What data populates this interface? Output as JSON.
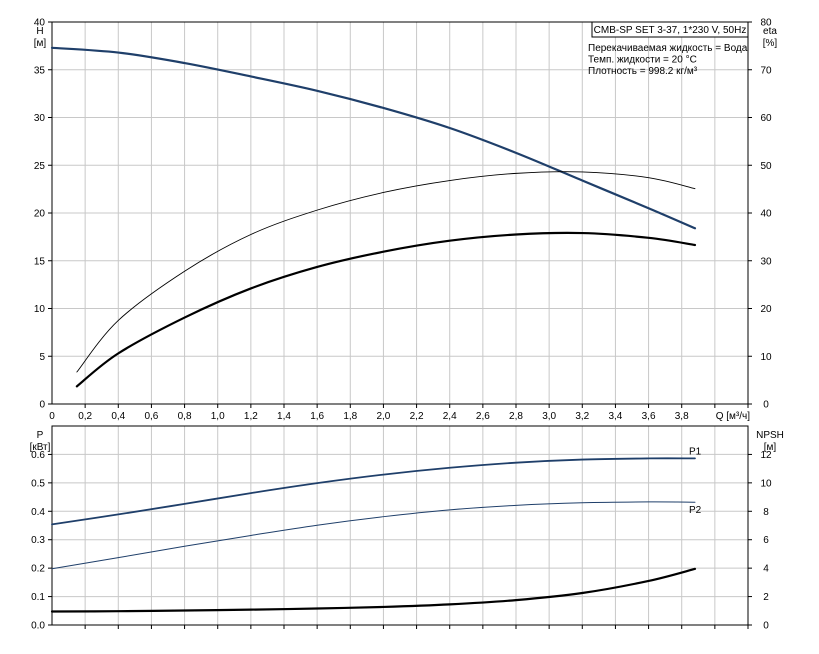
{
  "chart_data": [
    {
      "type": "line",
      "legend_box": {
        "title": "CMB-SP SET 3-37, 1*230 V, 50Hz",
        "lines": [
          "Перекачиваемая жидкость = Вода",
          "Темп. жидкости = 20 °C",
          "Плотность = 998.2 кг/м³"
        ]
      },
      "xlabel": "Q [м³/ч]",
      "xlim": [
        0,
        4.2
      ],
      "xticks": [
        "0",
        "0,2",
        "0,4",
        "0,6",
        "0,8",
        "1,0",
        "1,2",
        "1,4",
        "1,6",
        "1,8",
        "2,0",
        "2,2",
        "2,4",
        "2,6",
        "2,8",
        "3,0",
        "3,2",
        "3,4",
        "3,6",
        "3,8"
      ],
      "left_axis": {
        "label_top": "H",
        "label_unit": "[м]",
        "ylim": [
          0,
          40
        ],
        "ticks": [
          "0",
          "5",
          "10",
          "15",
          "20",
          "25",
          "30",
          "35",
          "40"
        ]
      },
      "right_axis": {
        "label_top": "eta",
        "label_unit": "[%]",
        "ylim": [
          0,
          80
        ],
        "ticks": [
          "0",
          "10",
          "20",
          "30",
          "40",
          "50",
          "60",
          "70",
          "80"
        ]
      },
      "grid": true,
      "series": [
        {
          "axis": "left",
          "color": "#1f3f6a",
          "width": 2.2,
          "x": [
            0,
            0.4,
            0.8,
            1.2,
            1.6,
            2.0,
            2.4,
            2.8,
            3.2,
            3.6,
            3.88
          ],
          "y": [
            37.3,
            36.8,
            35.7,
            34.3,
            32.8,
            31.0,
            28.9,
            26.3,
            23.4,
            20.5,
            18.4
          ]
        },
        {
          "axis": "right",
          "color": "#000000",
          "width": 0.9,
          "x": [
            0.15,
            0.4,
            0.8,
            1.2,
            1.6,
            2.0,
            2.4,
            2.8,
            3.2,
            3.6,
            3.88
          ],
          "y": [
            6.7,
            17.5,
            27.8,
            35.5,
            40.6,
            44.3,
            46.8,
            48.3,
            48.6,
            47.4,
            45.1
          ]
        },
        {
          "axis": "right",
          "color": "#000000",
          "width": 2.2,
          "x": [
            0.15,
            0.4,
            0.8,
            1.2,
            1.6,
            2.0,
            2.4,
            2.8,
            3.2,
            3.6,
            3.88
          ],
          "y": [
            3.7,
            10.6,
            18.1,
            24.2,
            28.7,
            31.9,
            34.2,
            35.5,
            35.8,
            34.8,
            33.3
          ]
        }
      ]
    },
    {
      "type": "line",
      "xlim": [
        0,
        4.2
      ],
      "left_axis": {
        "label_top": "P",
        "label_unit": "[кВт]",
        "ylim": [
          0,
          0.7
        ],
        "ticks": [
          "0.0",
          "0.1",
          "0.2",
          "0.3",
          "0.4",
          "0.5",
          "0.6"
        ]
      },
      "right_axis": {
        "label_top": "NPSH",
        "label_unit": "[м]",
        "ylim": [
          0,
          14
        ],
        "ticks": [
          "0",
          "2",
          "4",
          "6",
          "8",
          "10",
          "12"
        ]
      },
      "grid": true,
      "series": [
        {
          "name": "P1",
          "axis": "left",
          "color": "#1f3f6a",
          "width": 1.8,
          "x": [
            0,
            0.4,
            0.8,
            1.2,
            1.6,
            2.0,
            2.4,
            2.8,
            3.2,
            3.6,
            3.88
          ],
          "y": [
            0.354,
            0.389,
            0.426,
            0.464,
            0.499,
            0.529,
            0.553,
            0.571,
            0.582,
            0.586,
            0.586
          ]
        },
        {
          "name": "P2",
          "axis": "left",
          "color": "#1f3f6a",
          "width": 1.0,
          "x": [
            0,
            0.4,
            0.8,
            1.2,
            1.6,
            2.0,
            2.4,
            2.8,
            3.2,
            3.6,
            3.88
          ],
          "y": [
            0.198,
            0.237,
            0.277,
            0.315,
            0.351,
            0.381,
            0.405,
            0.421,
            0.43,
            0.433,
            0.432
          ]
        },
        {
          "axis": "right",
          "color": "#000000",
          "width": 2.2,
          "x": [
            0,
            0.4,
            0.8,
            1.2,
            1.6,
            2.0,
            2.4,
            2.8,
            3.2,
            3.6,
            3.88
          ],
          "y": [
            0.95,
            0.97,
            1.02,
            1.08,
            1.16,
            1.27,
            1.45,
            1.75,
            2.25,
            3.1,
            3.95
          ]
        }
      ]
    }
  ]
}
